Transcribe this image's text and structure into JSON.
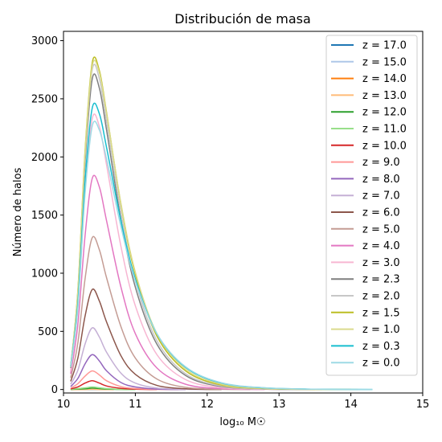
{
  "chart_data": {
    "type": "line",
    "title": "Distribución de masa",
    "xlabel": "log₁₀ M☉",
    "ylabel": "Número de halos",
    "xlim": [
      10,
      15
    ],
    "ylim": [
      -30,
      3080
    ],
    "xticks": [
      10,
      11,
      12,
      13,
      14,
      15
    ],
    "yticks": [
      0,
      500,
      1000,
      1500,
      2000,
      2500,
      3000
    ],
    "grid": false,
    "legend_position": "top-right",
    "series": [
      {
        "name": "z = 17.0",
        "color": "#1f77b4",
        "values": [
          [
            10.1,
            0
          ],
          [
            10.3,
            0
          ],
          [
            10.4,
            1
          ],
          [
            10.5,
            0
          ],
          [
            10.6,
            0
          ]
        ]
      },
      {
        "name": "z = 15.0",
        "color": "#aec7e8",
        "values": [
          [
            10.1,
            0
          ],
          [
            10.3,
            0
          ],
          [
            10.4,
            1
          ],
          [
            10.5,
            0
          ],
          [
            10.6,
            0
          ]
        ]
      },
      {
        "name": "z = 14.0",
        "color": "#ff7f0e",
        "values": [
          [
            10.1,
            0
          ],
          [
            10.3,
            1
          ],
          [
            10.4,
            2
          ],
          [
            10.5,
            1
          ],
          [
            10.7,
            0
          ]
        ]
      },
      {
        "name": "z = 13.0",
        "color": "#ffbb78",
        "values": [
          [
            10.1,
            0
          ],
          [
            10.3,
            1
          ],
          [
            10.4,
            3
          ],
          [
            10.5,
            1
          ],
          [
            10.7,
            0
          ]
        ]
      },
      {
        "name": "z = 12.0",
        "color": "#2ca02c",
        "values": [
          [
            10.1,
            1
          ],
          [
            10.3,
            6
          ],
          [
            10.4,
            12
          ],
          [
            10.5,
            8
          ],
          [
            10.6,
            4
          ],
          [
            10.8,
            1
          ],
          [
            11.0,
            0
          ]
        ]
      },
      {
        "name": "z = 11.0",
        "color": "#98df8a",
        "values": [
          [
            10.1,
            2
          ],
          [
            10.3,
            14
          ],
          [
            10.4,
            22
          ],
          [
            10.5,
            15
          ],
          [
            10.6,
            8
          ],
          [
            10.8,
            2
          ],
          [
            11.0,
            0
          ]
        ]
      },
      {
        "name": "z = 10.0",
        "color": "#d62728",
        "values": [
          [
            10.1,
            5
          ],
          [
            10.2,
            22
          ],
          [
            10.3,
            55
          ],
          [
            10.4,
            75
          ],
          [
            10.5,
            55
          ],
          [
            10.6,
            30
          ],
          [
            10.8,
            10
          ],
          [
            11.0,
            3
          ],
          [
            11.3,
            0
          ]
        ]
      },
      {
        "name": "z = 9.0",
        "color": "#ff9896",
        "values": [
          [
            10.1,
            12
          ],
          [
            10.2,
            50
          ],
          [
            10.3,
            115
          ],
          [
            10.4,
            160
          ],
          [
            10.5,
            125
          ],
          [
            10.6,
            75
          ],
          [
            10.8,
            25
          ],
          [
            11.0,
            8
          ],
          [
            11.3,
            1
          ],
          [
            11.6,
            0
          ]
        ]
      },
      {
        "name": "z = 8.0",
        "color": "#9467bd",
        "values": [
          [
            10.1,
            25
          ],
          [
            10.2,
            95
          ],
          [
            10.3,
            220
          ],
          [
            10.4,
            300
          ],
          [
            10.5,
            245
          ],
          [
            10.6,
            160
          ],
          [
            10.8,
            60
          ],
          [
            11.0,
            22
          ],
          [
            11.3,
            4
          ],
          [
            11.7,
            0
          ]
        ]
      },
      {
        "name": "z = 7.0",
        "color": "#c5b0d5",
        "values": [
          [
            10.1,
            45
          ],
          [
            10.2,
            165
          ],
          [
            10.3,
            390
          ],
          [
            10.4,
            530
          ],
          [
            10.5,
            450
          ],
          [
            10.6,
            320
          ],
          [
            10.8,
            140
          ],
          [
            11.0,
            55
          ],
          [
            11.3,
            12
          ],
          [
            11.7,
            2
          ],
          [
            12.0,
            0
          ]
        ]
      },
      {
        "name": "z = 6.0",
        "color": "#8c564b",
        "values": [
          [
            10.1,
            70
          ],
          [
            10.2,
            270
          ],
          [
            10.3,
            630
          ],
          [
            10.4,
            860
          ],
          [
            10.5,
            760
          ],
          [
            10.6,
            580
          ],
          [
            10.8,
            290
          ],
          [
            11.0,
            130
          ],
          [
            11.3,
            35
          ],
          [
            11.7,
            6
          ],
          [
            12.2,
            0
          ]
        ]
      },
      {
        "name": "z = 5.0",
        "color": "#c49c94",
        "values": [
          [
            10.1,
            100
          ],
          [
            10.2,
            400
          ],
          [
            10.3,
            950
          ],
          [
            10.4,
            1305
          ],
          [
            10.5,
            1200
          ],
          [
            10.6,
            960
          ],
          [
            10.8,
            540
          ],
          [
            11.0,
            270
          ],
          [
            11.3,
            90
          ],
          [
            11.7,
            18
          ],
          [
            12.2,
            2
          ],
          [
            12.6,
            0
          ]
        ]
      },
      {
        "name": "z = 4.0",
        "color": "#e377c2",
        "values": [
          [
            10.1,
            135
          ],
          [
            10.2,
            560
          ],
          [
            10.3,
            1320
          ],
          [
            10.4,
            1815
          ],
          [
            10.5,
            1740
          ],
          [
            10.6,
            1450
          ],
          [
            10.8,
            880
          ],
          [
            11.0,
            480
          ],
          [
            11.3,
            185
          ],
          [
            11.7,
            45
          ],
          [
            12.2,
            7
          ],
          [
            12.8,
            0
          ]
        ]
      },
      {
        "name": "z = 3.0",
        "color": "#f7b6d2",
        "values": [
          [
            10.1,
            160
          ],
          [
            10.2,
            710
          ],
          [
            10.3,
            1700
          ],
          [
            10.4,
            2330
          ],
          [
            10.5,
            2260
          ],
          [
            10.6,
            1930
          ],
          [
            10.8,
            1230
          ],
          [
            11.0,
            720
          ],
          [
            11.3,
            300
          ],
          [
            11.7,
            85
          ],
          [
            12.2,
            15
          ],
          [
            12.8,
            2
          ],
          [
            13.3,
            0
          ]
        ]
      },
      {
        "name": "z = 2.3",
        "color": "#7f7f7f",
        "values": [
          [
            10.1,
            185
          ],
          [
            10.2,
            810
          ],
          [
            10.3,
            1950
          ],
          [
            10.4,
            2670
          ],
          [
            10.5,
            2590
          ],
          [
            10.6,
            2230
          ],
          [
            10.8,
            1460
          ],
          [
            11.0,
            880
          ],
          [
            11.3,
            390
          ],
          [
            11.7,
            120
          ],
          [
            12.2,
            25
          ],
          [
            12.8,
            4
          ],
          [
            13.5,
            0
          ]
        ]
      },
      {
        "name": "z = 2.0",
        "color": "#c7c7c7",
        "values": [
          [
            10.1,
            190
          ],
          [
            10.2,
            830
          ],
          [
            10.3,
            2000
          ],
          [
            10.4,
            2750
          ],
          [
            10.5,
            2670
          ],
          [
            10.6,
            2300
          ],
          [
            10.8,
            1520
          ],
          [
            11.0,
            930
          ],
          [
            11.3,
            420
          ],
          [
            11.7,
            135
          ],
          [
            12.2,
            30
          ],
          [
            12.8,
            5
          ],
          [
            13.6,
            0
          ]
        ]
      },
      {
        "name": "z = 1.5",
        "color": "#bcbd22",
        "values": [
          [
            10.1,
            195
          ],
          [
            10.2,
            850
          ],
          [
            10.3,
            2050
          ],
          [
            10.4,
            2810
          ],
          [
            10.5,
            2740
          ],
          [
            10.6,
            2380
          ],
          [
            10.8,
            1590
          ],
          [
            11.0,
            990
          ],
          [
            11.3,
            460
          ],
          [
            11.7,
            160
          ],
          [
            12.2,
            38
          ],
          [
            12.8,
            8
          ],
          [
            13.5,
            1
          ],
          [
            14.0,
            0
          ]
        ]
      },
      {
        "name": "z = 1.0",
        "color": "#dbdb8d",
        "values": [
          [
            10.1,
            195
          ],
          [
            10.2,
            840
          ],
          [
            10.3,
            2030
          ],
          [
            10.4,
            2780
          ],
          [
            10.5,
            2720
          ],
          [
            10.6,
            2370
          ],
          [
            10.8,
            1600
          ],
          [
            11.0,
            1010
          ],
          [
            11.3,
            480
          ],
          [
            11.7,
            175
          ],
          [
            12.2,
            45
          ],
          [
            12.8,
            10
          ],
          [
            13.5,
            2
          ],
          [
            14.1,
            0
          ]
        ]
      },
      {
        "name": "z = 0.3",
        "color": "#17becf",
        "values": [
          [
            10.1,
            200
          ],
          [
            10.2,
            740
          ],
          [
            10.3,
            1790
          ],
          [
            10.4,
            2420
          ],
          [
            10.5,
            2370
          ],
          [
            10.6,
            2080
          ],
          [
            10.8,
            1450
          ],
          [
            11.0,
            950
          ],
          [
            11.3,
            480
          ],
          [
            11.7,
            190
          ],
          [
            12.2,
            55
          ],
          [
            12.8,
            14
          ],
          [
            13.5,
            3
          ],
          [
            14.3,
            0
          ]
        ]
      },
      {
        "name": "z = 0.0",
        "color": "#9edae5",
        "values": [
          [
            10.1,
            195
          ],
          [
            10.2,
            700
          ],
          [
            10.3,
            1680
          ],
          [
            10.4,
            2265
          ],
          [
            10.5,
            2230
          ],
          [
            10.6,
            1980
          ],
          [
            10.8,
            1400
          ],
          [
            11.0,
            930
          ],
          [
            11.3,
            480
          ],
          [
            11.7,
            195
          ],
          [
            12.2,
            58
          ],
          [
            12.8,
            15
          ],
          [
            13.5,
            3
          ],
          [
            14.3,
            0
          ]
        ]
      }
    ]
  }
}
